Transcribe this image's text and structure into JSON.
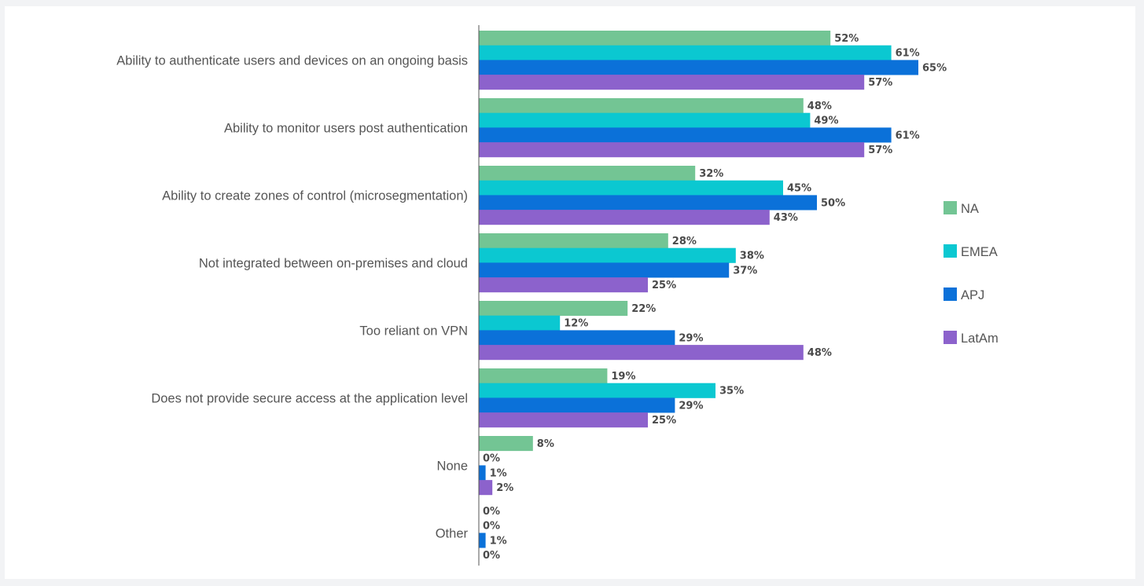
{
  "chart_data": {
    "type": "bar",
    "orientation": "horizontal",
    "categories": [
      "Ability to authenticate users and devices on an ongoing basis",
      "Ability to monitor users post authentication",
      "Ability to create zones of control (microsegmentation)",
      "Not integrated between on-premises and cloud",
      "Too reliant on VPN",
      "Does not provide secure access at the application level",
      "None",
      "Other"
    ],
    "series": [
      {
        "name": "NA",
        "color": "#73c594",
        "values": [
          52,
          48,
          32,
          28,
          22,
          19,
          8,
          0
        ]
      },
      {
        "name": "EMEA",
        "color": "#0bc8d1",
        "values": [
          61,
          49,
          45,
          38,
          12,
          35,
          0,
          0
        ]
      },
      {
        "name": "APJ",
        "color": "#0b71d9",
        "values": [
          65,
          61,
          50,
          37,
          29,
          29,
          1,
          1
        ]
      },
      {
        "name": "LatAm",
        "color": "#8c62cc",
        "values": [
          57,
          57,
          43,
          25,
          48,
          25,
          2,
          0
        ]
      }
    ],
    "value_suffix": "%",
    "xlim": [
      0,
      100
    ],
    "grid": false,
    "legend_position": "right"
  }
}
